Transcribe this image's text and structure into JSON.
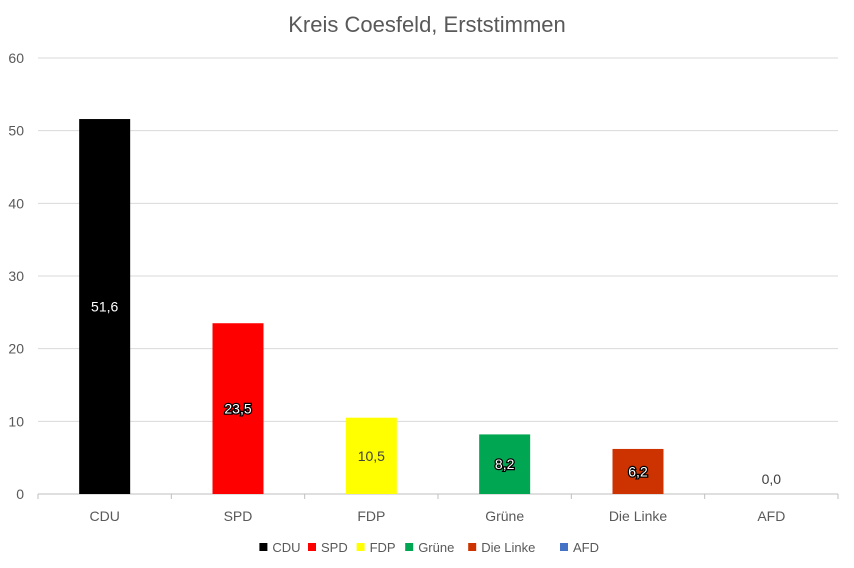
{
  "chart_data": {
    "type": "bar",
    "title": "Kreis Coesfeld, Erststimmen",
    "xlabel": "",
    "ylabel": "",
    "categories": [
      "CDU",
      "SPD",
      "FDP",
      "Grüne",
      "Die Linke",
      "AFD"
    ],
    "values": [
      51.6,
      23.5,
      10.5,
      8.2,
      6.2,
      0.0
    ],
    "value_labels": [
      "51,6",
      "23,5",
      "10,5",
      "8,2",
      "6,2",
      "0,0"
    ],
    "colors": [
      "#000000",
      "#ff0000",
      "#ffff00",
      "#00a651",
      "#cc3300",
      "#4472c4"
    ],
    "ylim": [
      0,
      60
    ],
    "yticks": [
      0,
      10,
      20,
      30,
      40,
      50,
      60
    ],
    "grid": true,
    "legend": {
      "placement": "bottom",
      "entries": [
        "CDU",
        "SPD",
        "FDP",
        "Grüne",
        "Die Linke",
        "AFD"
      ]
    }
  }
}
